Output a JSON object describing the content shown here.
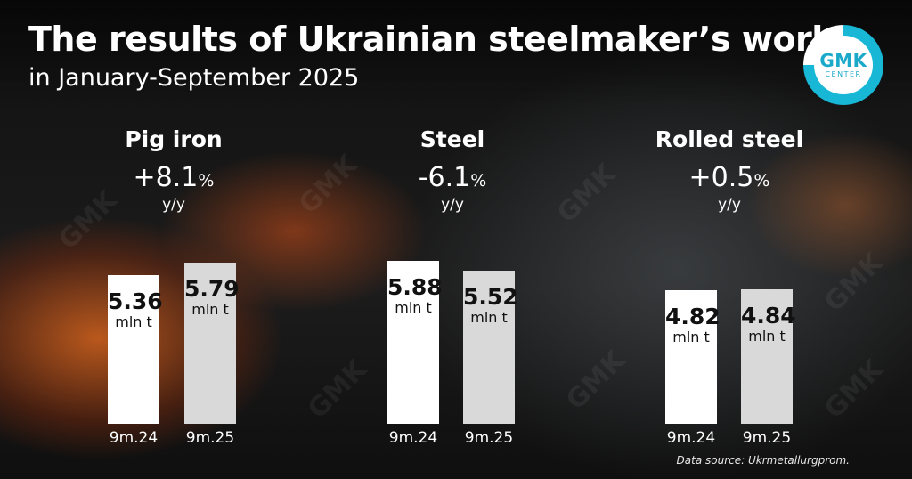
{
  "title": "The results of Ukrainian steelmaker’s work",
  "subtitle": "in January-September 2025",
  "logo": {
    "main": "GMK",
    "sub": "CENTER"
  },
  "source": "Data source: Ukrmetallurgprom.",
  "colors": {
    "bar_prev": "#ffffff",
    "bar_curr": "#d9d9d9",
    "accent": "#18b7d6"
  },
  "chart_data": [
    {
      "type": "bar",
      "title": "Pig iron",
      "change": "+8.1",
      "change_unit": "%",
      "change_label": "y/y",
      "categories": [
        "9m.24",
        "9m.25"
      ],
      "values": [
        5.36,
        5.79
      ],
      "value_labels": [
        "5.36",
        "5.79"
      ],
      "unit": "mln t"
    },
    {
      "type": "bar",
      "title": "Steel",
      "change": "-6.1",
      "change_unit": "%",
      "change_label": "y/y",
      "categories": [
        "9m.24",
        "9m.25"
      ],
      "values": [
        5.88,
        5.52
      ],
      "value_labels": [
        "5.88",
        "5.52"
      ],
      "unit": "mln t"
    },
    {
      "type": "bar",
      "title": "Rolled steel",
      "change": "+0.5",
      "change_unit": "%",
      "change_label": "y/y",
      "categories": [
        "9m.24",
        "9m.25"
      ],
      "values": [
        4.82,
        4.84
      ],
      "value_labels": [
        "4.82",
        "4.84"
      ],
      "unit": "mln t"
    }
  ]
}
